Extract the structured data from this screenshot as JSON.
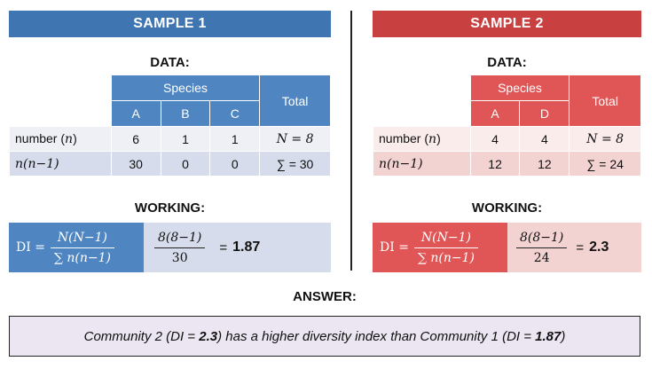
{
  "sample1": {
    "banner": "SAMPLE 1",
    "data_heading": "DATA:",
    "species_header": "Species",
    "total_header": "Total",
    "species": [
      "A",
      "B",
      "C"
    ],
    "row1_label": "number (",
    "row1_var": "n",
    "row1_close": ")",
    "row1_values": [
      "6",
      "1",
      "1"
    ],
    "row1_total": "N = 8",
    "row2_label": "n(n−1)",
    "row2_values": [
      "30",
      "0",
      "0"
    ],
    "row2_total": "∑ = 30",
    "working_heading": "WORKING:",
    "di_label": "DI =",
    "formula_num": "N(N−1)",
    "formula_den": "∑ n(n−1)",
    "sub_num": "8(8−1)",
    "sub_den": "30",
    "equals": "=",
    "result": "1.87"
  },
  "sample2": {
    "banner": "SAMPLE 2",
    "data_heading": "DATA:",
    "species_header": "Species",
    "total_header": "Total",
    "species": [
      "A",
      "D"
    ],
    "row1_label": "number (",
    "row1_var": "n",
    "row1_close": ")",
    "row1_values": [
      "4",
      "4"
    ],
    "row1_total": "N = 8",
    "row2_label": "n(n−1)",
    "row2_values": [
      "12",
      "12"
    ],
    "row2_total": "∑ = 24",
    "working_heading": "WORKING:",
    "di_label": "DI =",
    "formula_num": "N(N−1)",
    "formula_den": "∑ n(n−1)",
    "sub_num": "8(8−1)",
    "sub_den": "24",
    "equals": "=",
    "result": "2.3"
  },
  "answer": {
    "heading": "ANSWER:",
    "part1": "Community 2 (DI = ",
    "val2": "2.3",
    "part2": ") has a higher diversity index than Community 1 (DI = ",
    "val1": "1.87",
    "part3": ")"
  },
  "colors": {
    "sample1_accent": "#3f75b0",
    "sample2_accent": "#c94040",
    "answer_bg": "#ebe6f1"
  }
}
